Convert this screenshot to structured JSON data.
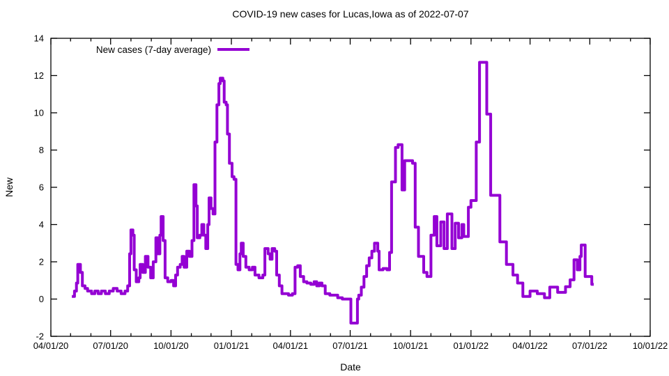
{
  "chart_data": {
    "type": "line",
    "title": "COVID-19 new cases for Lucas,Iowa as of 2022-07-07",
    "xlabel": "Date",
    "ylabel": "New",
    "grid": false,
    "legend_position": "top-left-inside",
    "x_type": "date",
    "xlim": [
      "2020-04-01",
      "2022-10-01"
    ],
    "ylim": [
      -2,
      14
    ],
    "y_ticks": [
      -2,
      0,
      2,
      4,
      6,
      8,
      10,
      12,
      14
    ],
    "x_major_tick_labels": [
      "04/01/20",
      "07/01/20",
      "10/01/20",
      "01/01/21",
      "04/01/21",
      "07/01/21",
      "10/01/21",
      "01/01/22",
      "04/01/22",
      "07/01/22",
      "10/01/22"
    ],
    "x_minor_ticks": "monthly",
    "series": [
      {
        "name": "New cases (7-day average)",
        "color": "#9400d3",
        "line_width": 4,
        "style": "step",
        "points": [
          [
            "2020-05-03",
            0.14
          ],
          [
            "2020-05-07",
            0.43
          ],
          [
            "2020-05-10",
            0.86
          ],
          [
            "2020-05-12",
            1.86
          ],
          [
            "2020-05-16",
            1.43
          ],
          [
            "2020-05-19",
            0.71
          ],
          [
            "2020-05-23",
            0.57
          ],
          [
            "2020-05-27",
            0.43
          ],
          [
            "2020-06-02",
            0.29
          ],
          [
            "2020-06-07",
            0.43
          ],
          [
            "2020-06-12",
            0.29
          ],
          [
            "2020-06-17",
            0.43
          ],
          [
            "2020-06-23",
            0.29
          ],
          [
            "2020-06-29",
            0.43
          ],
          [
            "2020-07-05",
            0.57
          ],
          [
            "2020-07-11",
            0.43
          ],
          [
            "2020-07-17",
            0.29
          ],
          [
            "2020-07-23",
            0.43
          ],
          [
            "2020-07-27",
            0.71
          ],
          [
            "2020-07-30",
            2.43
          ],
          [
            "2020-08-01",
            3.71
          ],
          [
            "2020-08-04",
            3.43
          ],
          [
            "2020-08-06",
            1.57
          ],
          [
            "2020-08-09",
            0.93
          ],
          [
            "2020-08-13",
            1.14
          ],
          [
            "2020-08-15",
            1.86
          ],
          [
            "2020-08-19",
            1.43
          ],
          [
            "2020-08-23",
            2.29
          ],
          [
            "2020-08-27",
            1.71
          ],
          [
            "2020-08-31",
            1.14
          ],
          [
            "2020-09-04",
            2.0
          ],
          [
            "2020-09-08",
            3.29
          ],
          [
            "2020-09-11",
            2.43
          ],
          [
            "2020-09-14",
            3.43
          ],
          [
            "2020-09-16",
            4.43
          ],
          [
            "2020-09-19",
            3.14
          ],
          [
            "2020-09-22",
            1.14
          ],
          [
            "2020-09-26",
            0.93
          ],
          [
            "2020-10-01",
            1.0
          ],
          [
            "2020-10-05",
            0.71
          ],
          [
            "2020-10-08",
            1.29
          ],
          [
            "2020-10-11",
            1.71
          ],
          [
            "2020-10-15",
            1.86
          ],
          [
            "2020-10-18",
            2.29
          ],
          [
            "2020-10-21",
            1.71
          ],
          [
            "2020-10-25",
            2.57
          ],
          [
            "2020-10-29",
            2.29
          ],
          [
            "2020-11-02",
            3.14
          ],
          [
            "2020-11-05",
            6.14
          ],
          [
            "2020-11-08",
            5.0
          ],
          [
            "2020-11-10",
            3.29
          ],
          [
            "2020-11-14",
            3.43
          ],
          [
            "2020-11-17",
            4.0
          ],
          [
            "2020-11-20",
            3.43
          ],
          [
            "2020-11-23",
            2.71
          ],
          [
            "2020-11-26",
            4.0
          ],
          [
            "2020-11-28",
            5.43
          ],
          [
            "2020-12-01",
            4.86
          ],
          [
            "2020-12-04",
            4.57
          ],
          [
            "2020-12-07",
            8.43
          ],
          [
            "2020-12-10",
            10.43
          ],
          [
            "2020-12-13",
            11.57
          ],
          [
            "2020-12-15",
            11.86
          ],
          [
            "2020-12-19",
            11.71
          ],
          [
            "2020-12-21",
            10.57
          ],
          [
            "2020-12-24",
            10.43
          ],
          [
            "2020-12-26",
            8.86
          ],
          [
            "2020-12-29",
            7.29
          ],
          [
            "2021-01-02",
            6.57
          ],
          [
            "2021-01-05",
            6.43
          ],
          [
            "2021-01-08",
            1.86
          ],
          [
            "2021-01-11",
            1.57
          ],
          [
            "2021-01-14",
            2.43
          ],
          [
            "2021-01-16",
            3.0
          ],
          [
            "2021-01-19",
            2.29
          ],
          [
            "2021-01-23",
            1.71
          ],
          [
            "2021-01-28",
            1.57
          ],
          [
            "2021-02-02",
            1.71
          ],
          [
            "2021-02-06",
            1.29
          ],
          [
            "2021-02-12",
            1.14
          ],
          [
            "2021-02-18",
            1.29
          ],
          [
            "2021-02-21",
            2.71
          ],
          [
            "2021-02-26",
            2.43
          ],
          [
            "2021-03-01",
            2.14
          ],
          [
            "2021-03-04",
            2.71
          ],
          [
            "2021-03-08",
            2.57
          ],
          [
            "2021-03-11",
            1.29
          ],
          [
            "2021-03-15",
            0.71
          ],
          [
            "2021-03-19",
            0.29
          ],
          [
            "2021-03-29",
            0.21
          ],
          [
            "2021-04-04",
            0.29
          ],
          [
            "2021-04-08",
            1.71
          ],
          [
            "2021-04-12",
            1.79
          ],
          [
            "2021-04-16",
            1.21
          ],
          [
            "2021-04-21",
            0.93
          ],
          [
            "2021-04-26",
            0.86
          ],
          [
            "2021-05-02",
            0.79
          ],
          [
            "2021-05-07",
            0.93
          ],
          [
            "2021-05-11",
            0.71
          ],
          [
            "2021-05-15",
            0.86
          ],
          [
            "2021-05-19",
            0.71
          ],
          [
            "2021-05-24",
            0.29
          ],
          [
            "2021-05-31",
            0.21
          ],
          [
            "2021-06-12",
            0.07
          ],
          [
            "2021-06-19",
            0.0
          ],
          [
            "2021-07-02",
            -1.29
          ],
          [
            "2021-07-12",
            0.0
          ],
          [
            "2021-07-14",
            0.21
          ],
          [
            "2021-07-18",
            0.64
          ],
          [
            "2021-07-22",
            1.21
          ],
          [
            "2021-07-26",
            1.79
          ],
          [
            "2021-07-30",
            2.21
          ],
          [
            "2021-08-03",
            2.57
          ],
          [
            "2021-08-07",
            3.0
          ],
          [
            "2021-08-12",
            2.57
          ],
          [
            "2021-08-14",
            1.57
          ],
          [
            "2021-08-20",
            1.64
          ],
          [
            "2021-08-26",
            1.57
          ],
          [
            "2021-08-30",
            2.5
          ],
          [
            "2021-09-02",
            6.29
          ],
          [
            "2021-09-08",
            8.14
          ],
          [
            "2021-09-12",
            8.29
          ],
          [
            "2021-09-18",
            5.86
          ],
          [
            "2021-09-22",
            7.43
          ],
          [
            "2021-10-04",
            7.29
          ],
          [
            "2021-10-08",
            3.86
          ],
          [
            "2021-10-13",
            2.29
          ],
          [
            "2021-10-21",
            1.43
          ],
          [
            "2021-10-26",
            1.21
          ],
          [
            "2021-11-01",
            3.43
          ],
          [
            "2021-11-06",
            4.43
          ],
          [
            "2021-11-10",
            2.86
          ],
          [
            "2021-11-16",
            4.14
          ],
          [
            "2021-11-21",
            2.71
          ],
          [
            "2021-11-26",
            4.57
          ],
          [
            "2021-12-03",
            2.71
          ],
          [
            "2021-12-08",
            4.07
          ],
          [
            "2021-12-13",
            3.29
          ],
          [
            "2021-12-18",
            4.0
          ],
          [
            "2021-12-21",
            3.36
          ],
          [
            "2021-12-28",
            4.93
          ],
          [
            "2022-01-01",
            5.29
          ],
          [
            "2022-01-09",
            8.43
          ],
          [
            "2022-01-14",
            12.71
          ],
          [
            "2022-01-25",
            9.93
          ],
          [
            "2022-01-31",
            5.57
          ],
          [
            "2022-02-14",
            3.07
          ],
          [
            "2022-02-24",
            1.86
          ],
          [
            "2022-03-06",
            1.29
          ],
          [
            "2022-03-13",
            0.86
          ],
          [
            "2022-03-21",
            0.14
          ],
          [
            "2022-04-01",
            0.43
          ],
          [
            "2022-04-12",
            0.29
          ],
          [
            "2022-04-23",
            0.07
          ],
          [
            "2022-05-01",
            0.64
          ],
          [
            "2022-05-13",
            0.36
          ],
          [
            "2022-05-25",
            0.66
          ],
          [
            "2022-06-01",
            1.03
          ],
          [
            "2022-06-07",
            2.11
          ],
          [
            "2022-06-12",
            1.57
          ],
          [
            "2022-06-16",
            2.29
          ],
          [
            "2022-06-18",
            2.9
          ],
          [
            "2022-06-24",
            1.21
          ],
          [
            "2022-07-04",
            0.79
          ],
          [
            "2022-07-07",
            0.79
          ]
        ]
      }
    ]
  }
}
